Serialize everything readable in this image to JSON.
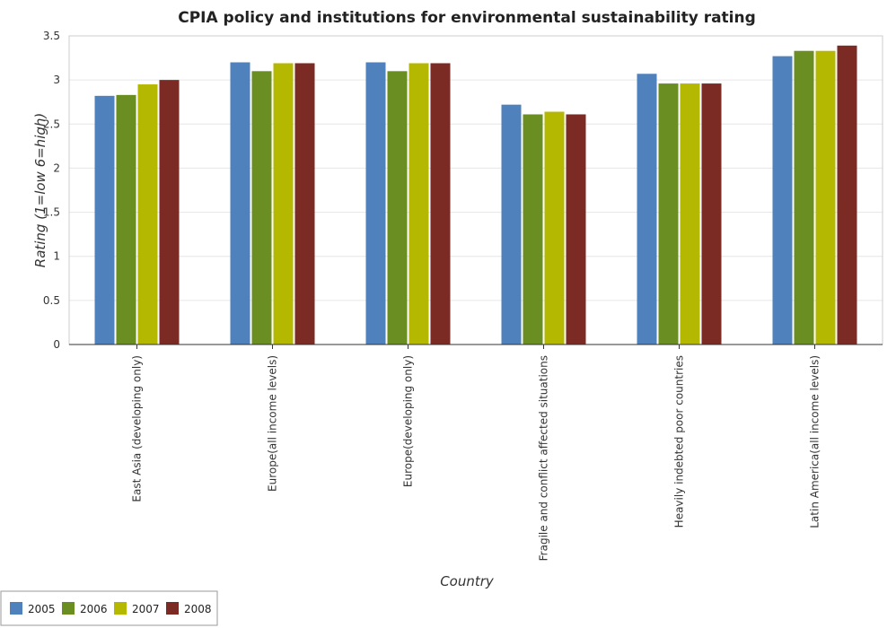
{
  "chart_data": {
    "type": "bar",
    "title": "CPIA policy and institutions for environmental sustainability rating",
    "xlabel": "Country",
    "ylabel": "Rating (1=low 6=high)",
    "ylim": [
      0,
      3.5
    ],
    "yticks": [
      "0",
      "0.5",
      "1",
      "1.5",
      "2",
      "2.5",
      "3",
      "3.5"
    ],
    "grid": true,
    "legend_position": "bottom-left",
    "categories": [
      "East Asia (developing only)",
      "Europe(all income levels)",
      "Europe(developing only)",
      "Fragile and conflict affected situations",
      "Heavily indebted poor countries",
      "Latin America(all income levels)"
    ],
    "series": [
      {
        "name": "2005",
        "color": "#4f81bd",
        "values": [
          2.82,
          3.2,
          3.2,
          2.72,
          3.07,
          3.27
        ]
      },
      {
        "name": "2006",
        "color": "#6b8e23",
        "values": [
          2.83,
          3.1,
          3.1,
          2.61,
          2.96,
          3.33
        ]
      },
      {
        "name": "2007",
        "color": "#b5b800",
        "values": [
          2.95,
          3.19,
          3.19,
          2.64,
          2.96,
          3.33
        ]
      },
      {
        "name": "2008",
        "color": "#7b2a24",
        "values": [
          3.0,
          3.19,
          3.19,
          2.61,
          2.96,
          3.39
        ]
      }
    ]
  }
}
